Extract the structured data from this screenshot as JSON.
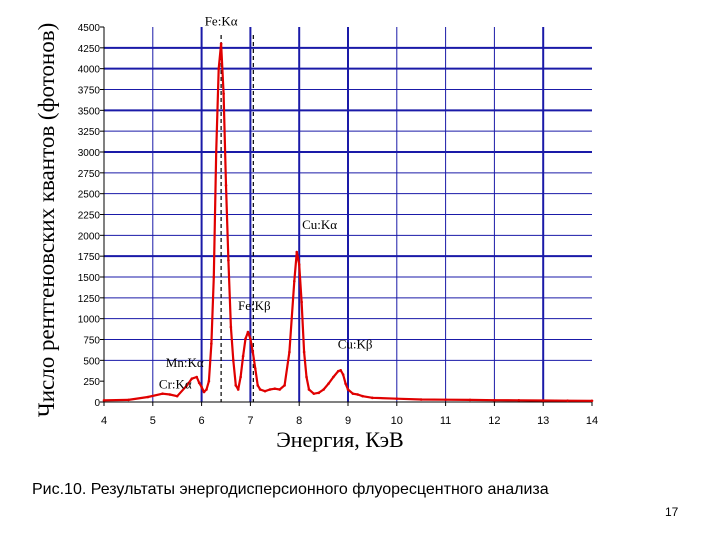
{
  "chart_data": {
    "type": "line",
    "title": "",
    "xlabel": "Энергия, КэВ",
    "ylabel": "Число рентгеновских квантов (фотонов)",
    "xlim": [
      4,
      14
    ],
    "ylim": [
      0,
      4500
    ],
    "x_ticks": [
      4,
      5,
      6,
      7,
      8,
      9,
      10,
      11,
      12,
      13,
      14
    ],
    "y_ticks": [
      0,
      250,
      500,
      750,
      1000,
      1250,
      1500,
      1750,
      2000,
      2250,
      2500,
      2750,
      3000,
      3250,
      3500,
      3750,
      4000,
      4250,
      4500
    ],
    "grid": {
      "vertical_x": [
        5,
        6,
        7,
        8,
        9,
        10,
        11,
        12,
        13
      ],
      "horizontal_y": [
        500,
        750,
        1000,
        1250,
        1500,
        1750,
        2000,
        2250,
        2500,
        2750,
        3000,
        3250,
        3500,
        3750,
        4000,
        4250
      ],
      "bold_vertical_x": [
        6,
        7,
        8,
        9,
        13
      ],
      "bold_horizontal_y": [
        1750,
        3000,
        3500,
        4000,
        4250
      ]
    },
    "colors": {
      "grid": "#1a1aa8",
      "spectrum": "#e00000",
      "annotation": "#000000"
    },
    "series": [
      {
        "x": [
          4.0,
          4.5,
          4.9,
          5.2,
          5.35,
          5.5,
          5.7,
          5.8,
          5.9,
          5.95,
          6.0,
          6.05,
          6.1,
          6.15,
          6.2,
          6.25,
          6.3,
          6.35,
          6.4,
          6.45,
          6.5,
          6.55,
          6.6,
          6.65,
          6.7,
          6.75,
          6.8,
          6.85,
          6.9,
          6.95,
          7.0,
          7.05,
          7.1,
          7.15,
          7.2,
          7.3,
          7.4,
          7.5,
          7.6,
          7.7,
          7.8,
          7.9,
          7.95,
          8.0,
          8.05,
          8.1,
          8.15,
          8.2,
          8.3,
          8.4,
          8.5,
          8.6,
          8.7,
          8.8,
          8.85,
          8.9,
          8.95,
          9.0,
          9.1,
          9.2,
          9.3,
          9.5,
          10.0,
          10.5,
          11.0,
          11.5,
          12.0,
          12.5,
          13.0,
          13.5,
          14.0
        ],
        "y": [
          20,
          25,
          60,
          100,
          90,
          70,
          200,
          280,
          300,
          230,
          180,
          120,
          150,
          250,
          700,
          1500,
          3000,
          4000,
          4300,
          3700,
          2600,
          1700,
          900,
          500,
          200,
          150,
          300,
          550,
          760,
          840,
          760,
          600,
          400,
          200,
          150,
          130,
          150,
          160,
          150,
          200,
          600,
          1450,
          1800,
          1650,
          1200,
          600,
          300,
          150,
          100,
          110,
          150,
          220,
          300,
          370,
          380,
          330,
          220,
          150,
          100,
          90,
          70,
          50,
          40,
          30,
          28,
          25,
          22,
          20,
          18,
          16,
          15
        ]
      }
    ],
    "annotations": [
      {
        "text": "Fe:Kα",
        "x": 6.4,
        "y": 4300
      },
      {
        "text": "Cu:Kα",
        "x": 8.05,
        "y": 1800
      },
      {
        "text": "Fe:Kβ",
        "x": 7.06,
        "y": 840
      },
      {
        "text": "Cu:Kβ",
        "x": 8.9,
        "y": 380
      },
      {
        "text": "Mn:Kα",
        "x": 5.9,
        "y": 300
      },
      {
        "text": "Cr:Kα",
        "x": 5.4,
        "y": 100
      }
    ],
    "dashed_markers_x": [
      6.4,
      7.06
    ]
  },
  "caption": "Рис.10. Результаты энергодисперсионного флуоресцентного анализа",
  "page_number": "17"
}
